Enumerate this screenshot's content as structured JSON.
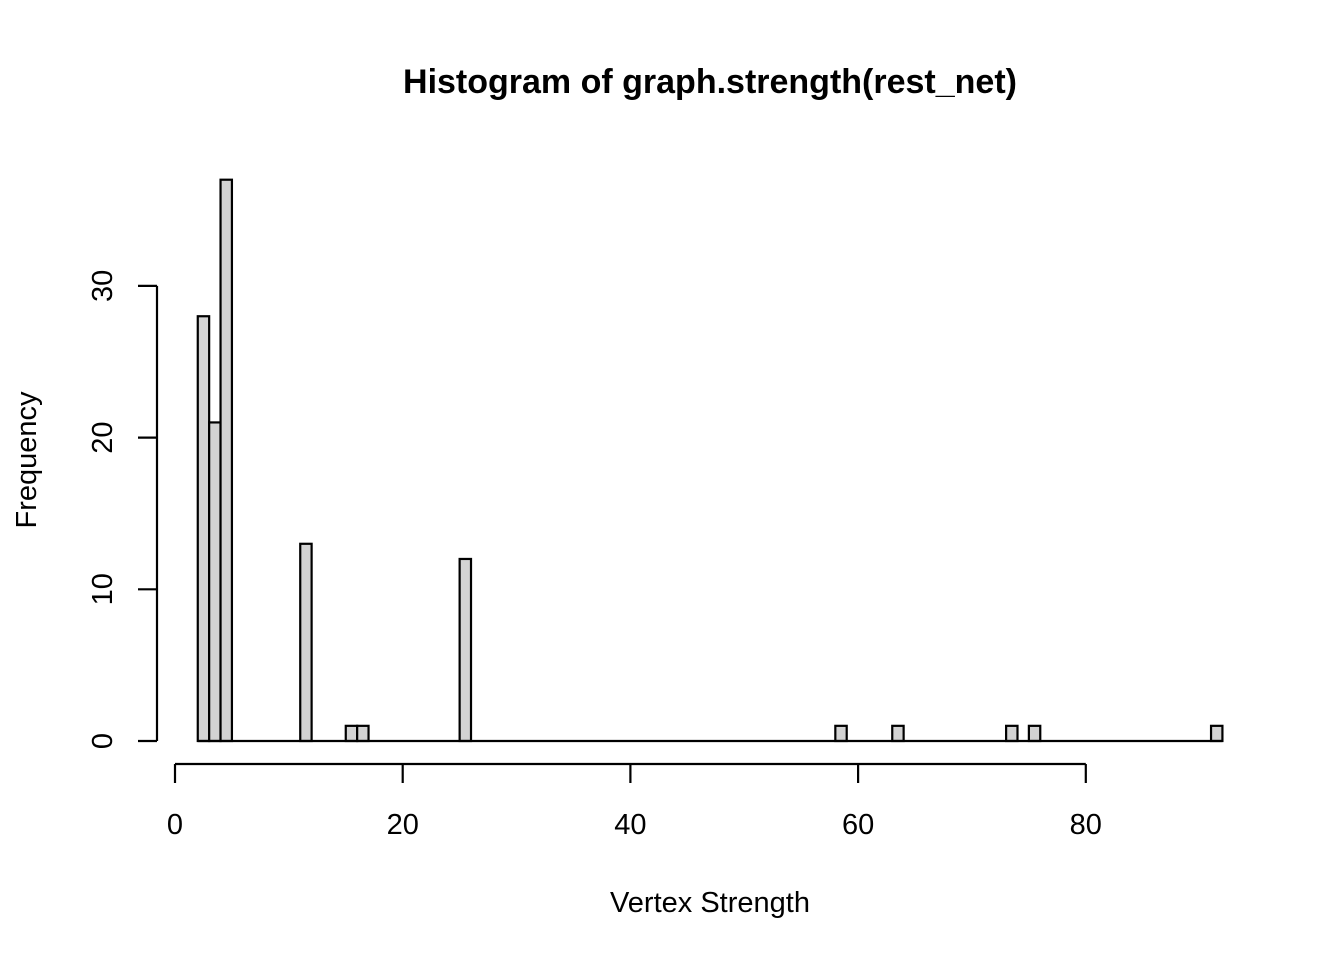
{
  "chart_data": {
    "type": "bar",
    "title": "Histogram of graph.strength(rest_net)",
    "xlabel": "Vertex Strength",
    "ylabel": "Frequency",
    "xlim": [
      0,
      92
    ],
    "ylim": [
      0,
      37
    ],
    "x_ticks": [
      0,
      20,
      40,
      60,
      80
    ],
    "y_ticks": [
      0,
      10,
      20,
      30
    ],
    "bin_width": 1,
    "bins": [
      {
        "start": 2,
        "end": 3,
        "count": 28
      },
      {
        "start": 3,
        "end": 4,
        "count": 21
      },
      {
        "start": 4,
        "end": 5,
        "count": 37
      },
      {
        "start": 11,
        "end": 12,
        "count": 13
      },
      {
        "start": 15,
        "end": 16,
        "count": 1
      },
      {
        "start": 16,
        "end": 17,
        "count": 1
      },
      {
        "start": 25,
        "end": 26,
        "count": 12
      },
      {
        "start": 58,
        "end": 59,
        "count": 1
      },
      {
        "start": 63,
        "end": 64,
        "count": 1
      },
      {
        "start": 73,
        "end": 74,
        "count": 1
      },
      {
        "start": 75,
        "end": 76,
        "count": 1
      },
      {
        "start": 91,
        "end": 92,
        "count": 1
      }
    ]
  }
}
